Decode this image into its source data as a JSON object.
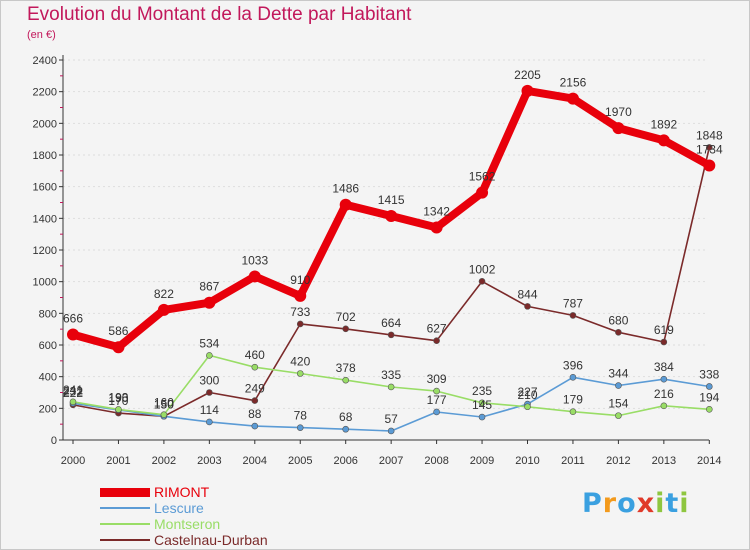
{
  "colors": {
    "title": "#c2185b",
    "axis": "#333333",
    "grid": "#dddddd",
    "background": "#f4f4f4",
    "label": "#333333"
  },
  "chart_data": {
    "type": "line",
    "title": "Evolution du Montant de la Dette par Habitant",
    "subtitle": "(en €)",
    "xlabel": "",
    "ylabel": "",
    "x": [
      "2000",
      "2001",
      "2002",
      "2003",
      "2004",
      "2005",
      "2006",
      "2007",
      "2008",
      "2009",
      "2010",
      "2011",
      "2012",
      "2013",
      "2014"
    ],
    "ylim": [
      0,
      2400
    ],
    "yticks": [
      0,
      200,
      400,
      600,
      800,
      1000,
      1200,
      1400,
      1600,
      1800,
      2000,
      2200,
      2400
    ],
    "grid": "horizontal dotted",
    "legend_position": "bottom-left",
    "series": [
      {
        "name": "RIMONT",
        "color": "#e8000b",
        "emphasis": true,
        "values": [
          666,
          586,
          822,
          867,
          1033,
          910,
          1486,
          1415,
          1342,
          1562,
          2205,
          2156,
          1970,
          1892,
          1734
        ]
      },
      {
        "name": "Lescure",
        "color": "#5b9bd5",
        "values": [
          232,
          190,
          150,
          114,
          88,
          78,
          68,
          57,
          177,
          145,
          227,
          396,
          344,
          384,
          338
        ]
      },
      {
        "name": "Montseron",
        "color": "#99dd66",
        "values": [
          241,
          193,
          160,
          534,
          460,
          420,
          378,
          335,
          309,
          235,
          210,
          179,
          154,
          216,
          194
        ]
      },
      {
        "name": "Castelnau-Durban",
        "color": "#7b2a2a",
        "values": [
          222,
          170,
          150,
          300,
          249,
          733,
          702,
          664,
          627,
          1002,
          844,
          787,
          680,
          619,
          1848
        ]
      }
    ]
  },
  "logo": {
    "letters": [
      "P",
      "r",
      "o",
      "x",
      "i",
      "t",
      "i"
    ],
    "colors": [
      "#3aa0e0",
      "#f39a1c",
      "#3aa0e0",
      "#e03a2a",
      "#8ec63f",
      "#3aa0e0",
      "#8ec63f"
    ]
  }
}
